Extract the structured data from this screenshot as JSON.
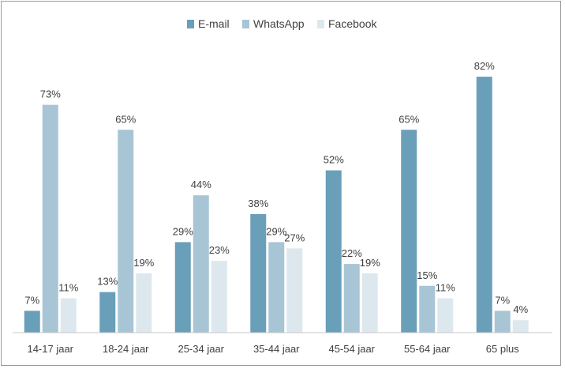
{
  "chart_data": {
    "type": "bar",
    "categories": [
      "14-17 jaar",
      "18-24 jaar",
      "25-34 jaar",
      "35-44 jaar",
      "45-54 jaar",
      "55-64 jaar",
      "65 plus"
    ],
    "series": [
      {
        "name": "E-mail",
        "color": "#6a9fb9",
        "values": [
          7,
          13,
          29,
          38,
          52,
          65,
          82
        ]
      },
      {
        "name": "WhatsApp",
        "color": "#a7c5d5",
        "values": [
          73,
          65,
          44,
          29,
          22,
          15,
          7
        ]
      },
      {
        "name": "Facebook",
        "color": "#dde8ee",
        "values": [
          11,
          19,
          23,
          27,
          19,
          11,
          4
        ]
      }
    ],
    "value_suffix": "%",
    "legend_position": "top-center",
    "grid": false,
    "ylim": [
      0,
      90
    ]
  }
}
